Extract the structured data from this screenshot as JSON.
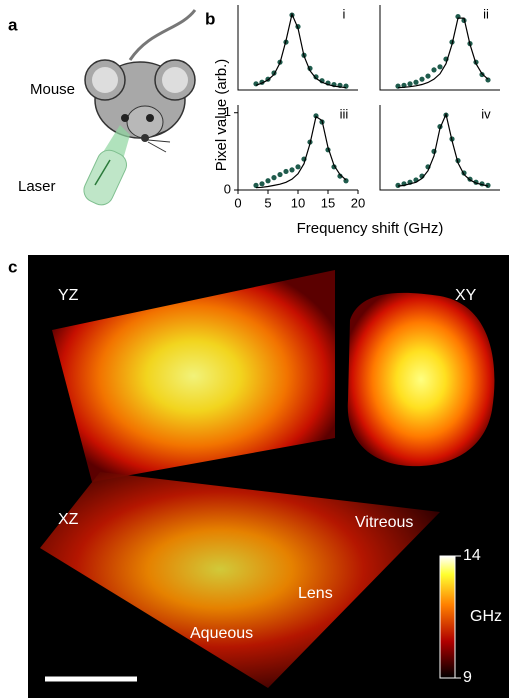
{
  "panel_labels": [
    "a",
    "b",
    "c"
  ],
  "panel_a": {
    "mouse": "Mouse",
    "laser": "Laser"
  },
  "panel_b": {
    "ylabel": "Pixel value (arb.)",
    "xlabel": "Frequency shift (GHz)"
  },
  "chart_data": [
    {
      "type": "line",
      "label": "i",
      "x": [
        3,
        4,
        5,
        6,
        7,
        8,
        9,
        10,
        11,
        12,
        13,
        14,
        15,
        16,
        17,
        18
      ],
      "xlim": [
        0,
        20
      ],
      "ylim": [
        0,
        1.1
      ],
      "series": [
        {
          "color": "#1f5b4c",
          "markers": true,
          "values": [
            0.08,
            0.1,
            0.14,
            0.22,
            0.36,
            0.62,
            0.97,
            0.82,
            0.45,
            0.28,
            0.17,
            0.12,
            0.09,
            0.07,
            0.06,
            0.05
          ]
        },
        {
          "color": "#000000",
          "markers": false,
          "values": [
            0.06,
            0.09,
            0.13,
            0.2,
            0.35,
            0.64,
            0.98,
            0.8,
            0.44,
            0.25,
            0.15,
            0.1,
            0.07,
            0.05,
            0.04,
            0.03
          ]
        }
      ]
    },
    {
      "type": "line",
      "label": "ii",
      "x": [
        3,
        4,
        5,
        6,
        7,
        8,
        9,
        10,
        11,
        12,
        13,
        14,
        15,
        16,
        17,
        18
      ],
      "xlim": [
        0,
        20
      ],
      "ylim": [
        0,
        1.1
      ],
      "series": [
        {
          "color": "#1f5b4c",
          "markers": true,
          "values": [
            0.05,
            0.06,
            0.08,
            0.1,
            0.14,
            0.18,
            0.26,
            0.3,
            0.4,
            0.62,
            0.95,
            0.9,
            0.6,
            0.36,
            0.2,
            0.13
          ]
        },
        {
          "color": "#000000",
          "markers": false,
          "values": [
            0.03,
            0.035,
            0.043,
            0.054,
            0.071,
            0.097,
            0.14,
            0.21,
            0.34,
            0.59,
            0.93,
            0.93,
            0.59,
            0.34,
            0.21,
            0.14
          ]
        }
      ]
    },
    {
      "type": "line",
      "label": "iii",
      "x": [
        3,
        4,
        5,
        6,
        7,
        8,
        9,
        10,
        11,
        12,
        13,
        14,
        15,
        16,
        17,
        18
      ],
      "xlim": [
        0,
        20
      ],
      "ylim": [
        0,
        1.1
      ],
      "xticks": [
        0,
        5,
        10,
        15,
        20
      ],
      "yticks": [
        0,
        1
      ],
      "series": [
        {
          "color": "#1f5b4c",
          "markers": true,
          "values": [
            0.06,
            0.08,
            0.12,
            0.16,
            0.2,
            0.24,
            0.26,
            0.3,
            0.4,
            0.62,
            0.96,
            0.88,
            0.52,
            0.3,
            0.18,
            0.12
          ]
        },
        {
          "color": "#000000",
          "markers": false,
          "values": [
            0.03,
            0.035,
            0.045,
            0.06,
            0.075,
            0.1,
            0.14,
            0.21,
            0.34,
            0.6,
            0.95,
            0.9,
            0.55,
            0.32,
            0.2,
            0.13
          ]
        }
      ]
    },
    {
      "type": "line",
      "label": "iv",
      "x": [
        3,
        4,
        5,
        6,
        7,
        8,
        9,
        10,
        11,
        12,
        13,
        14,
        15,
        16,
        17,
        18
      ],
      "xlim": [
        0,
        20
      ],
      "ylim": [
        0,
        1.1
      ],
      "series": [
        {
          "color": "#1f5b4c",
          "markers": true,
          "values": [
            0.06,
            0.08,
            0.1,
            0.13,
            0.18,
            0.3,
            0.5,
            0.82,
            0.97,
            0.66,
            0.38,
            0.22,
            0.14,
            0.1,
            0.08,
            0.06
          ]
        },
        {
          "color": "#000000",
          "markers": false,
          "values": [
            0.05,
            0.06,
            0.08,
            0.1,
            0.15,
            0.25,
            0.44,
            0.8,
            0.98,
            0.64,
            0.35,
            0.2,
            0.13,
            0.09,
            0.07,
            0.05
          ]
        }
      ]
    }
  ],
  "panel_c": {
    "views": [
      "YZ",
      "XY",
      "XZ"
    ],
    "regions": [
      "Vitreous",
      "Lens",
      "Aqueous"
    ],
    "colorbar": {
      "label": "GHz",
      "lim": [
        9,
        14
      ],
      "ticks": [
        9,
        14
      ]
    }
  }
}
